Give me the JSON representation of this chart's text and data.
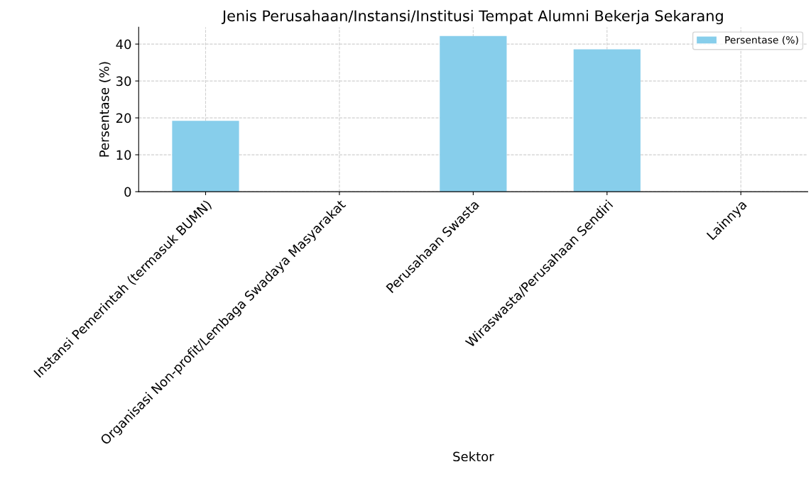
{
  "chart_data": {
    "type": "bar",
    "title": "Jenis Perusahaan/Instansi/Institusi Tempat Alumni Bekerja Sekarang",
    "xlabel": "Sektor",
    "ylabel": "Persentase (%)",
    "categories": [
      "Instansi Pemerintah (termasuk BUMN)",
      "Organisasi Non-profit/Lembaga Swadaya Masyarakat",
      "Perusahaan Swasta",
      "Wiraswasta/Perusahaan Sendiri",
      "Lainnya"
    ],
    "series": [
      {
        "name": "Persentase (%)",
        "color": "#87ceeb",
        "values": [
          19.2,
          0,
          42.2,
          38.6,
          0
        ]
      }
    ],
    "ylim": [
      0,
      44.6
    ],
    "yticks": [
      0,
      10,
      20,
      30,
      40
    ],
    "grid": true,
    "legend": "top right"
  }
}
